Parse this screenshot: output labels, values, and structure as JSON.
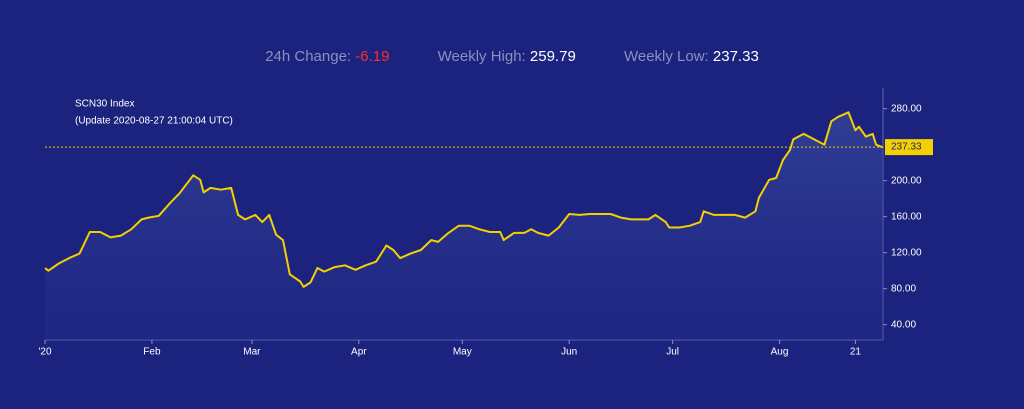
{
  "header": {
    "items": [
      {
        "label": "24h Change:",
        "value": "-6.19"
      },
      {
        "label": "Weekly High:",
        "value": "259.79"
      },
      {
        "label": "Weekly Low:",
        "value": "237.33"
      }
    ]
  },
  "chart_data": {
    "type": "area",
    "title": "SCN30 Index",
    "subtitle": "(Update 2020-08-27 21:00:04 UTC)",
    "x": [
      0,
      1,
      4,
      7,
      10,
      13,
      16,
      19,
      22,
      25,
      28,
      30,
      33,
      36,
      39,
      42,
      43,
      45,
      46,
      48,
      51,
      54,
      56,
      58,
      61,
      63,
      65,
      67,
      69,
      71,
      74,
      75,
      77,
      79,
      81,
      84,
      87,
      90,
      93,
      96,
      99,
      101,
      103,
      106,
      109,
      112,
      114,
      117,
      120,
      123,
      126,
      129,
      132,
      133,
      136,
      139,
      141,
      143,
      146,
      149,
      152,
      155,
      158,
      161,
      164,
      167,
      170,
      172,
      175,
      177,
      180,
      181,
      184,
      187,
      190,
      191,
      194,
      197,
      200,
      203,
      206,
      207,
      210,
      212,
      214,
      216,
      217,
      220,
      223,
      226,
      228,
      230,
      233,
      235,
      236,
      238,
      240,
      241,
      243
    ],
    "series": [
      {
        "name": "SCN30 Index",
        "color": "#f5d000",
        "values": [
          103,
          100,
          108,
          114,
          119,
          143,
          143,
          137,
          139,
          146,
          157,
          159,
          161,
          174,
          186,
          201,
          206,
          201,
          187,
          192,
          190,
          192,
          162,
          157,
          162,
          154,
          162,
          140,
          134,
          96,
          88,
          82,
          87,
          103,
          99,
          104,
          106,
          101,
          106,
          110,
          128,
          123,
          114,
          119,
          123,
          134,
          132,
          142,
          150,
          150,
          146,
          143,
          143,
          134,
          142,
          142,
          146,
          142,
          139,
          148,
          163,
          162,
          163,
          163,
          163,
          159,
          157,
          157,
          157,
          162,
          154,
          148,
          148,
          150,
          154,
          166,
          162,
          162,
          162,
          159,
          166,
          181,
          201,
          203,
          223,
          234,
          246,
          252,
          246,
          240,
          266,
          271,
          276,
          256,
          260,
          249,
          252,
          240,
          237
        ]
      }
    ],
    "last_value": 237.33,
    "xlim": [
      0,
      243
    ],
    "xticks": [
      {
        "value": 0,
        "label": "'20"
      },
      {
        "value": 31,
        "label": "Feb"
      },
      {
        "value": 60,
        "label": "Mar"
      },
      {
        "value": 91,
        "label": "Apr"
      },
      {
        "value": 121,
        "label": "May"
      },
      {
        "value": 152,
        "label": "Jun"
      },
      {
        "value": 182,
        "label": "Jul"
      },
      {
        "value": 213,
        "label": "Aug"
      },
      {
        "value": 235,
        "label": "21"
      }
    ],
    "ylim": [
      23,
      303
    ],
    "yticks": [
      {
        "value": 40,
        "label": "40.00"
      },
      {
        "value": 80,
        "label": "80.00"
      },
      {
        "value": 120,
        "label": "120.00"
      },
      {
        "value": 160,
        "label": "160.00"
      },
      {
        "value": 200,
        "label": "200.00"
      },
      {
        "value": 280,
        "label": "280.00"
      }
    ]
  }
}
